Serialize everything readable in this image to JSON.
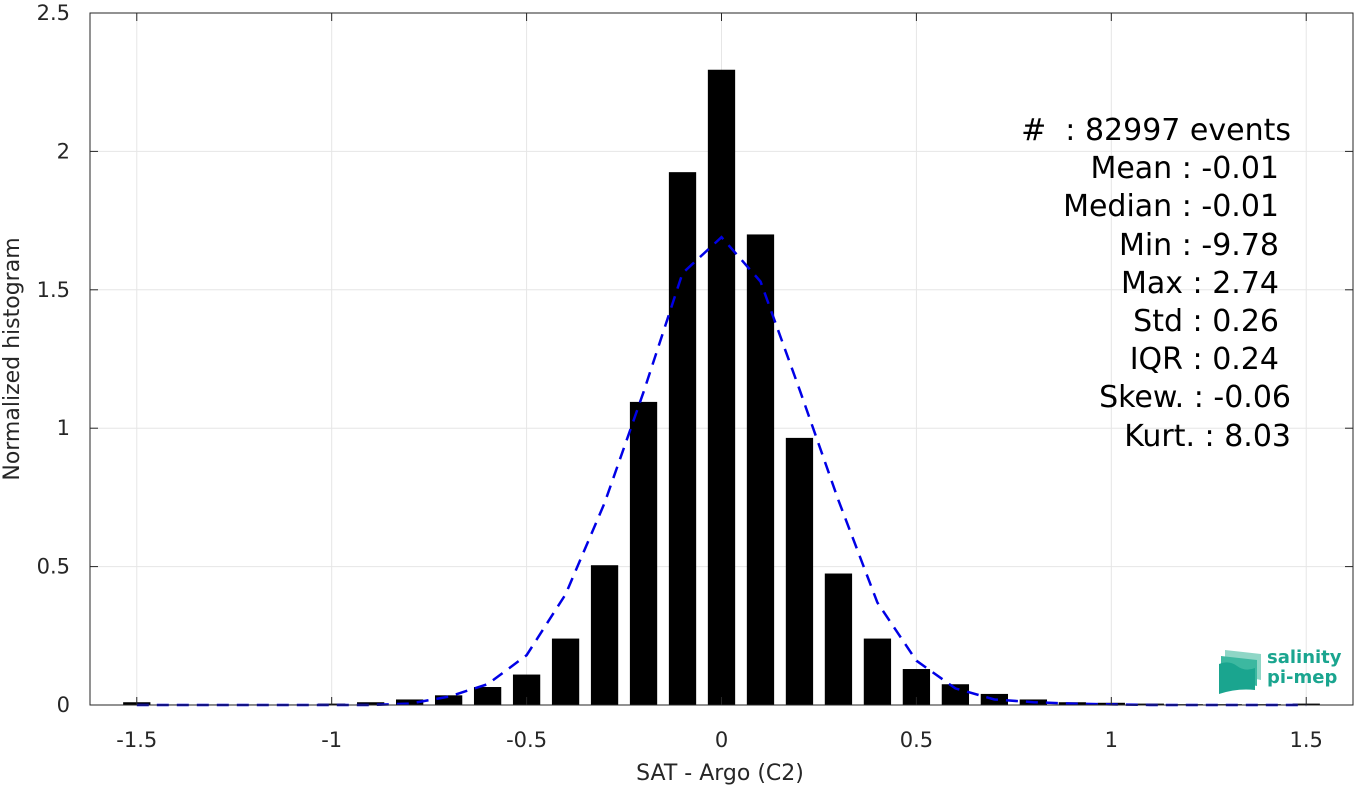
{
  "chart_data": {
    "type": "bar",
    "xlabel": "SAT - Argo (C2)",
    "ylabel": "Normalized histogram",
    "xlim": [
      -1.62,
      1.62
    ],
    "ylim": [
      0,
      2.5
    ],
    "xticks": [
      -1.5,
      -1,
      -0.5,
      0,
      0.5,
      1,
      1.5
    ],
    "xtick_labels": [
      "-1.5",
      "-1",
      "-0.5",
      "0",
      "0.5",
      "1",
      "1.5"
    ],
    "yticks": [
      0,
      0.5,
      1,
      1.5,
      2,
      2.5
    ],
    "ytick_labels": [
      "0",
      "0.5",
      "1",
      "1.5",
      "2",
      "2.5"
    ],
    "grid": true,
    "bar_color": "#000000",
    "bars": {
      "x": [
        -1.5,
        -1.4,
        -1.3,
        -1.2,
        -1.1,
        -1.0,
        -0.9,
        -0.8,
        -0.7,
        -0.6,
        -0.5,
        -0.4,
        -0.3,
        -0.2,
        -0.1,
        0.0,
        0.1,
        0.2,
        0.3,
        0.4,
        0.5,
        0.6,
        0.7,
        0.8,
        0.9,
        1.0,
        1.1,
        1.2,
        1.3,
        1.4,
        1.5
      ],
      "values": [
        0.01,
        0.002,
        0.002,
        0.002,
        0.002,
        0.005,
        0.01,
        0.02,
        0.035,
        0.065,
        0.11,
        0.24,
        0.505,
        1.095,
        1.925,
        2.295,
        1.7,
        0.965,
        0.475,
        0.24,
        0.13,
        0.075,
        0.04,
        0.02,
        0.01,
        0.008,
        0.005,
        0.003,
        0.003,
        0.003,
        0.005
      ]
    },
    "series": [
      {
        "type": "line",
        "style": "dashed",
        "color": "#0000e6",
        "x": [
          -1.5,
          -1.4,
          -1.3,
          -1.2,
          -1.1,
          -1.0,
          -0.9,
          -0.8,
          -0.7,
          -0.6,
          -0.5,
          -0.4,
          -0.3,
          -0.2,
          -0.1,
          0.0,
          0.1,
          0.2,
          0.3,
          0.4,
          0.5,
          0.6,
          0.7,
          0.8,
          0.9,
          1.0,
          1.1,
          1.2,
          1.3,
          1.4,
          1.5
        ],
        "values": [
          0,
          0,
          0,
          0,
          0,
          0,
          0,
          0.005,
          0.03,
          0.075,
          0.18,
          0.4,
          0.73,
          1.13,
          1.56,
          1.69,
          1.53,
          1.14,
          0.74,
          0.37,
          0.16,
          0.06,
          0.02,
          0.01,
          0.005,
          0.002,
          0,
          0,
          0,
          0,
          0
        ]
      }
    ]
  },
  "stats": {
    "lines": [
      "#  : 82997 events",
      "Mean : -0.01",
      "Median : -0.01",
      "Min : -9.78",
      "Max : 2.74",
      "Std : 0.26",
      "IQR : 0.24",
      "Skew. : -0.06",
      "Kurt. : 8.03"
    ]
  },
  "logo": {
    "line1": "salinity",
    "line2": "pi-mep",
    "color": "#1aa58f"
  }
}
